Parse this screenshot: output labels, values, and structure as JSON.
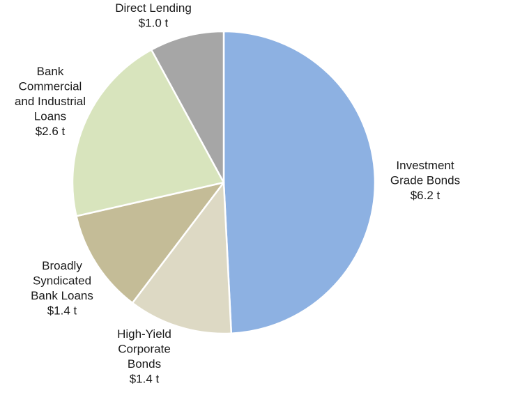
{
  "chart_data": {
    "type": "pie",
    "title": "",
    "unit": "$ t",
    "slices": [
      {
        "name": "Investment Grade Bonds",
        "value": 6.2,
        "label_lines": [
          "Investment",
          "Grade Bonds",
          "$6.2 t"
        ],
        "color": "#8db1e2",
        "anchor": "middle"
      },
      {
        "name": "High-Yield Corporate Bonds",
        "value": 1.4,
        "label_lines": [
          "High-Yield",
          "Corporate",
          "Bonds",
          "$1.4 t"
        ],
        "color": "#ddd9c4",
        "anchor": "middle"
      },
      {
        "name": "Broadly Syndicated Bank Loans",
        "value": 1.4,
        "label_lines": [
          "Broadly",
          "Syndicated",
          "Bank Loans",
          "$1.4 t"
        ],
        "color": "#c4bc97",
        "anchor": "middle"
      },
      {
        "name": "Bank Commercial and Industrial Loans",
        "value": 2.6,
        "label_lines": [
          "Bank",
          "Commercial",
          "and Industrial",
          "Loans",
          "$2.6 t"
        ],
        "color": "#d8e4bd",
        "anchor": "start"
      },
      {
        "name": "Direct Lending",
        "value": 1.0,
        "label_lines": [
          "Direct Lending",
          "$1.0 t"
        ],
        "color": "#a6a6a6",
        "anchor": "middle"
      }
    ],
    "start": "12 o'clock",
    "direction": "clockwise",
    "legend": "none (labels beside slices)"
  }
}
